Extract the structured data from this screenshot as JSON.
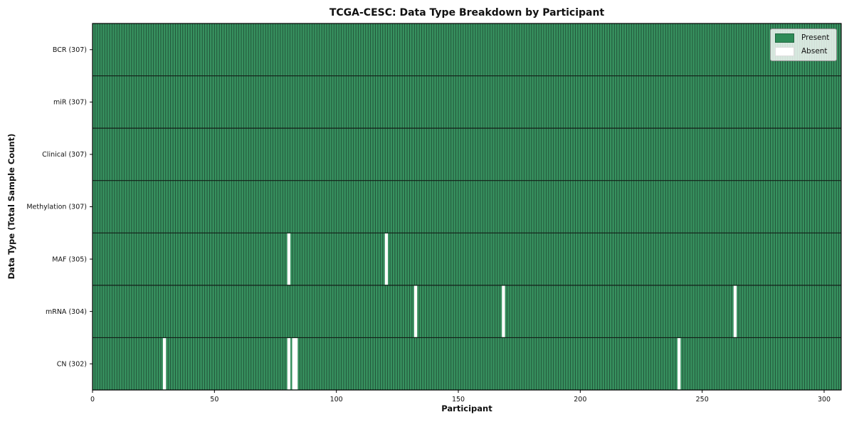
{
  "chart_data": {
    "type": "heatmap",
    "title": "TCGA-CESC: Data Type Breakdown by Participant",
    "xlabel": "Participant",
    "ylabel": "Data Type (Total Sample Count)",
    "x_range": [
      0,
      307
    ],
    "x_ticks": [
      0,
      50,
      100,
      150,
      200,
      250,
      300
    ],
    "n_participants": 307,
    "grid": false,
    "legend_position": "upper right",
    "legend_items": [
      {
        "label": "Present",
        "color": "#2e8b57"
      },
      {
        "label": "Absent",
        "color": "#ffffff"
      }
    ],
    "rows": [
      {
        "label": "BCR (307)",
        "data_type": "BCR",
        "present_count": 307,
        "absent_participants": []
      },
      {
        "label": "miR (307)",
        "data_type": "miR",
        "present_count": 307,
        "absent_participants": []
      },
      {
        "label": "Clinical (307)",
        "data_type": "Clinical",
        "present_count": 307,
        "absent_participants": []
      },
      {
        "label": "Methylation (307)",
        "data_type": "Methylation",
        "present_count": 307,
        "absent_participants": []
      },
      {
        "label": "MAF (305)",
        "data_type": "MAF",
        "present_count": 305,
        "absent_participants": [
          80,
          120
        ]
      },
      {
        "label": "mRNA (304)",
        "data_type": "mRNA",
        "present_count": 304,
        "absent_participants": [
          132,
          168,
          263
        ]
      },
      {
        "label": "CN (302)",
        "data_type": "CN",
        "present_count": 302,
        "absent_participants": [
          29,
          80,
          82,
          83,
          240
        ]
      }
    ],
    "colors": {
      "present": "#37915f",
      "absent": "#ffffff",
      "cell_edge": "#1b3f2c",
      "row_divider": "#131f18",
      "plot_border": "#000000",
      "tick_text": "#111111"
    }
  }
}
